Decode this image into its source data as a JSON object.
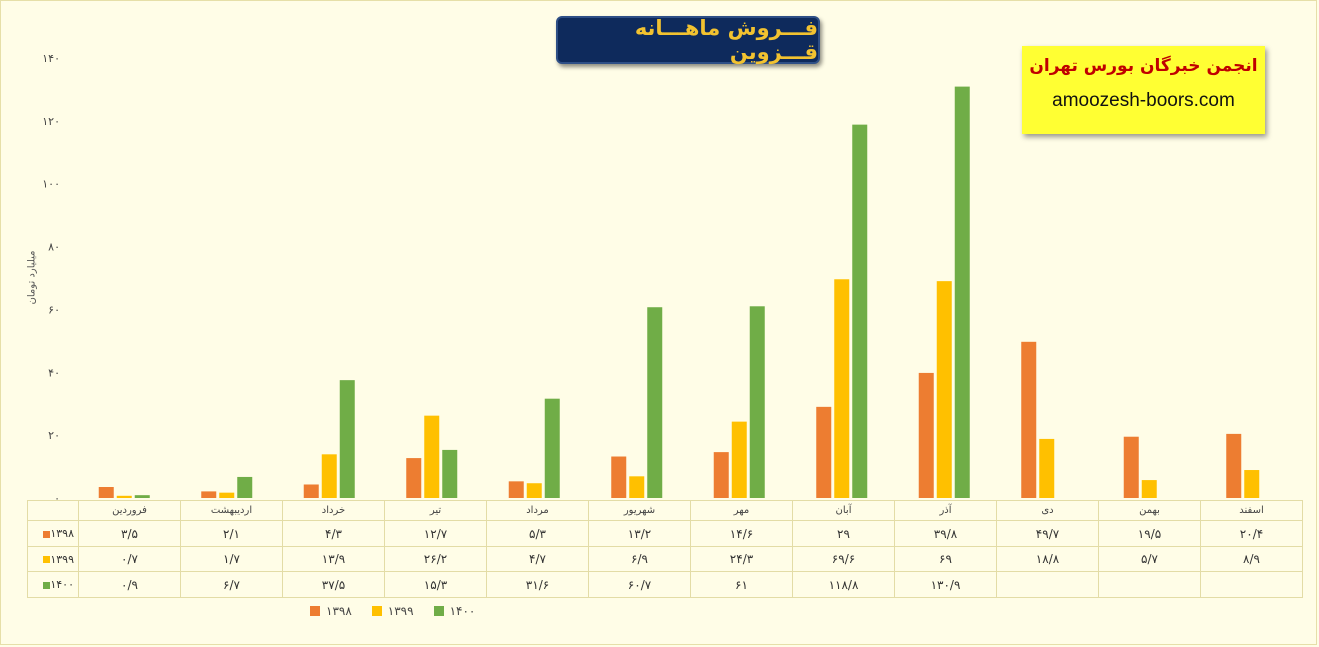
{
  "header": {
    "title": "فـــروش ماهـــانه قـــزوین"
  },
  "brand": {
    "name": "انجمن خبرگان بورس تهران",
    "url": "amoozesh-boors.com"
  },
  "colors": {
    "s1398": "#ED7D31",
    "s1399": "#FFC000",
    "s1400": "#70AD47",
    "background": "#FFFDE7"
  },
  "chart_data": {
    "type": "bar",
    "title": "فـــروش ماهـــانه قـــزوین",
    "ylabel": "میلیارد تومان",
    "ylim": [
      0,
      140
    ],
    "yticks": [
      "۰",
      "۲۰",
      "۴۰",
      "۶۰",
      "۸۰",
      "۱۰۰",
      "۱۲۰",
      "۱۴۰"
    ],
    "ytick_values": [
      0,
      20,
      40,
      60,
      80,
      100,
      120,
      140
    ],
    "grid": false,
    "legend_position": "bottom",
    "categories": [
      "فروردین",
      "اردیبهشت",
      "خرداد",
      "تیر",
      "مرداد",
      "شهریور",
      "مهر",
      "آبان",
      "آذر",
      "دی",
      "بهمن",
      "اسفند"
    ],
    "series": [
      {
        "name": "۱۳۹۸",
        "color": "#ED7D31",
        "values": [
          3.5,
          2.1,
          4.3,
          12.7,
          5.3,
          13.2,
          14.6,
          29,
          39.8,
          49.7,
          19.5,
          20.4
        ],
        "labels": [
          "۳/۵",
          "۲/۱",
          "۴/۳",
          "۱۲/۷",
          "۵/۳",
          "۱۳/۲",
          "۱۴/۶",
          "۲۹",
          "۳۹/۸",
          "۴۹/۷",
          "۱۹/۵",
          "۲۰/۴"
        ]
      },
      {
        "name": "۱۳۹۹",
        "color": "#FFC000",
        "values": [
          0.7,
          1.7,
          13.9,
          26.2,
          4.7,
          6.9,
          24.3,
          69.6,
          69,
          18.8,
          5.7,
          8.9
        ],
        "labels": [
          "۰/۷",
          "۱/۷",
          "۱۳/۹",
          "۲۶/۲",
          "۴/۷",
          "۶/۹",
          "۲۴/۳",
          "۶۹/۶",
          "۶۹",
          "۱۸/۸",
          "۵/۷",
          "۸/۹"
        ]
      },
      {
        "name": "۱۴۰۰",
        "color": "#70AD47",
        "values": [
          0.9,
          6.7,
          37.5,
          15.3,
          31.6,
          60.7,
          61,
          118.8,
          130.9,
          null,
          null,
          null
        ],
        "labels": [
          "۰/۹",
          "۶/۷",
          "۳۷/۵",
          "۱۵/۳",
          "۳۱/۶",
          "۶۰/۷",
          "۶۱",
          "۱۱۸/۸",
          "۱۳۰/۹",
          "",
          "",
          ""
        ]
      }
    ]
  }
}
